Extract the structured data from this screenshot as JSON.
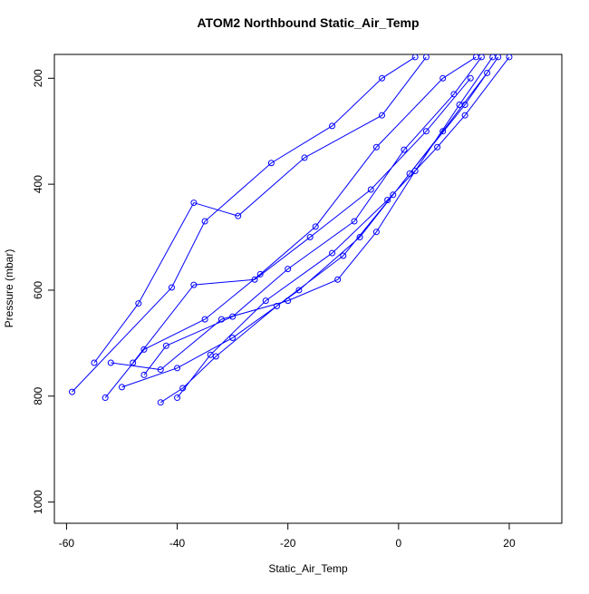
{
  "chart_data": {
    "type": "line",
    "title": "ATOM2 Northbound Static_Air_Temp",
    "xlabel": "Static_Air_Temp",
    "ylabel": "Pressure (mbar)",
    "color": "#0000ff",
    "x": [
      -59,
      -41,
      -35,
      -23,
      -12,
      -3,
      3,
      null,
      -53,
      -46,
      -35,
      -25,
      -15,
      -4,
      8,
      14,
      null,
      -50,
      -40,
      -30,
      -18,
      -7,
      2,
      12,
      18,
      null,
      -43,
      -39,
      -33,
      -22,
      -10,
      -1,
      8,
      16,
      null,
      -55,
      -47,
      -37,
      -29,
      -17,
      -3,
      5,
      null,
      -46,
      -42,
      -30,
      -20,
      -8,
      1,
      10,
      15,
      null,
      -48,
      -37,
      -26,
      -16,
      -5,
      5,
      13,
      null,
      -40,
      -34,
      -24,
      -12,
      -2,
      7,
      12,
      20,
      null,
      -52,
      -43,
      -32,
      -20,
      -11,
      -4,
      3,
      11,
      17
    ],
    "values": [
      792,
      595,
      470,
      360,
      290,
      200,
      160,
      null,
      803,
      712,
      655,
      570,
      480,
      330,
      200,
      160,
      null,
      783,
      747,
      690,
      600,
      500,
      380,
      250,
      160,
      null,
      812,
      785,
      725,
      630,
      535,
      420,
      300,
      190,
      null,
      737,
      625,
      435,
      460,
      350,
      270,
      160,
      null,
      760,
      705,
      650,
      560,
      470,
      335,
      230,
      160,
      null,
      737,
      590,
      580,
      500,
      410,
      300,
      200,
      null,
      803,
      722,
      620,
      530,
      430,
      330,
      270,
      160,
      null,
      737,
      750,
      655,
      620,
      580,
      490,
      375,
      250,
      160
    ],
    "xlim": [
      -62.2,
      29.5
    ],
    "ylim": [
      1040,
      155
    ],
    "xticks": [
      -60,
      -40,
      -20,
      0,
      20
    ],
    "yticks": [
      200,
      400,
      600,
      800,
      1000
    ]
  }
}
